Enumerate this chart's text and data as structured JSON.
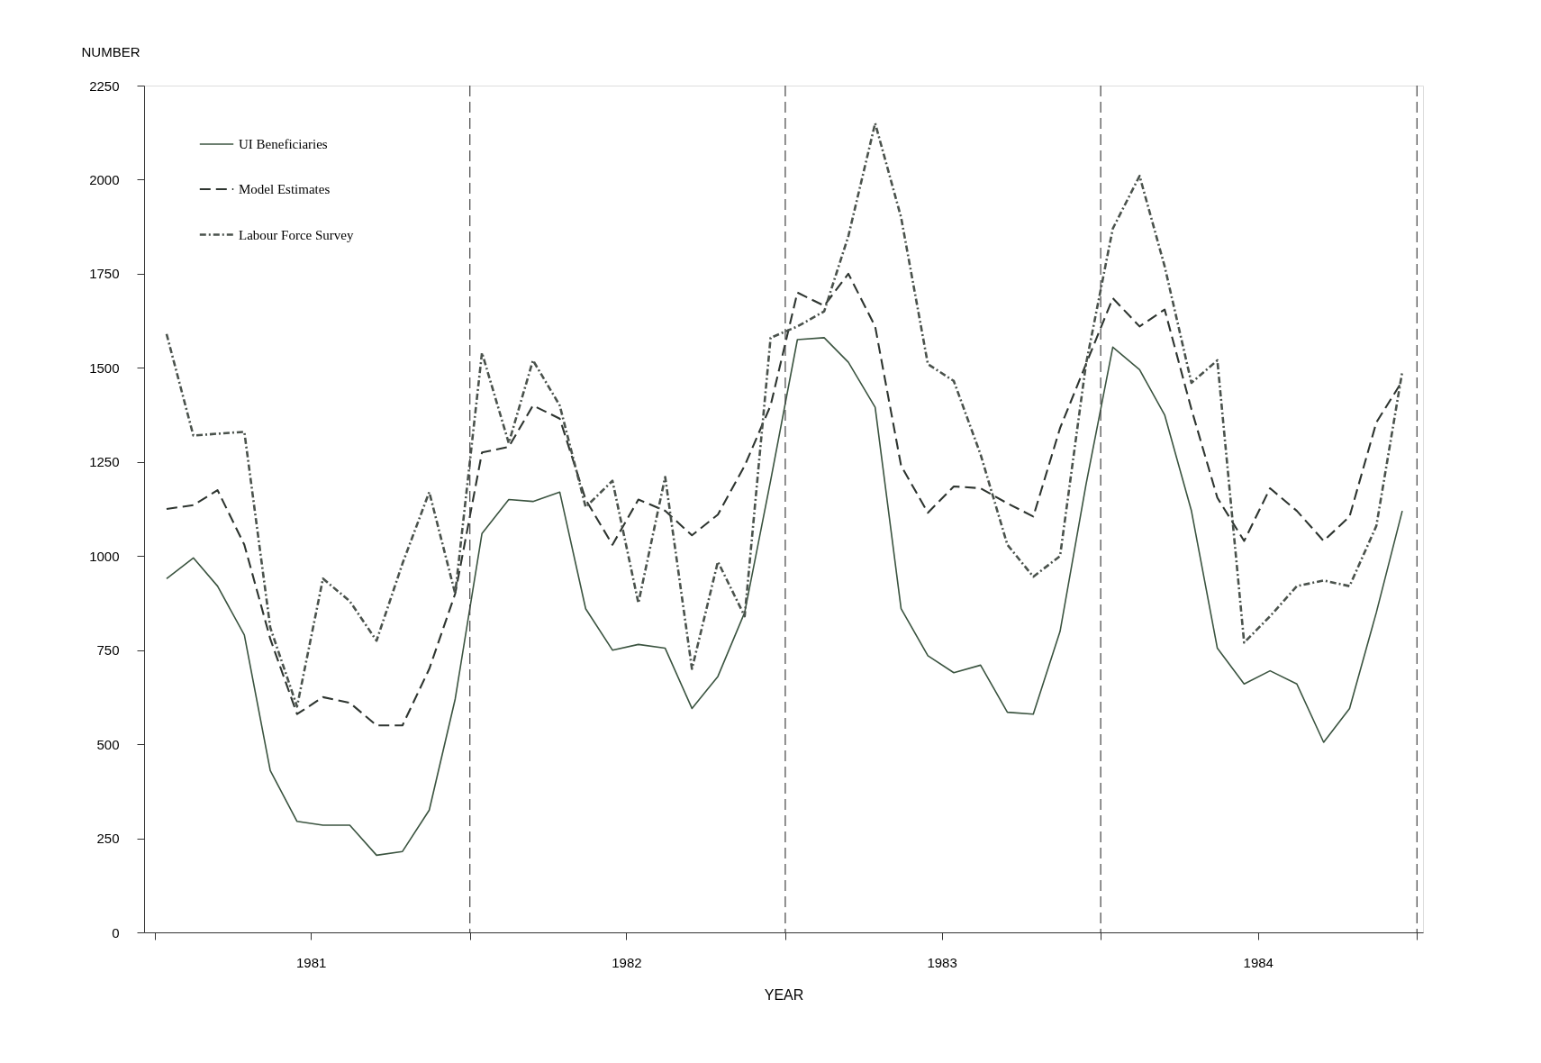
{
  "chart_data": {
    "type": "line",
    "xlabel": "YEAR",
    "ylabel": "NUMBER",
    "x": [
      "1981-01-15",
      "1981-02-15",
      "1981-03-15",
      "1981-04-15",
      "1981-05-15",
      "1981-06-15",
      "1981-07-15",
      "1981-08-15",
      "1981-09-15",
      "1981-10-15",
      "1981-11-15",
      "1981-12-15",
      "1982-01-15",
      "1982-02-15",
      "1982-03-15",
      "1982-04-15",
      "1982-05-15",
      "1982-06-15",
      "1982-07-15",
      "1982-08-15",
      "1982-09-15",
      "1982-10-15",
      "1982-11-15",
      "1982-12-15",
      "1983-01-15",
      "1983-02-15",
      "1983-03-15",
      "1983-04-15",
      "1983-05-15",
      "1983-06-15",
      "1983-07-15",
      "1983-08-15",
      "1983-09-15",
      "1983-10-15",
      "1983-11-15",
      "1983-12-15",
      "1984-01-15",
      "1984-02-15",
      "1984-03-15",
      "1984-04-15",
      "1984-05-15",
      "1984-06-15",
      "1984-07-15",
      "1984-08-15",
      "1984-09-15",
      "1984-10-15",
      "1984-11-15",
      "1984-12-15"
    ],
    "series": [
      {
        "name": "UI Beneficiaries",
        "color": "#3b5440",
        "line_style": "solid",
        "values": [
          940,
          995,
          920,
          790,
          430,
          295,
          285,
          285,
          205,
          215,
          325,
          620,
          1060,
          1150,
          1145,
          1170,
          860,
          750,
          765,
          755,
          595,
          680,
          850,
          1200,
          1575,
          1580,
          1515,
          1395,
          860,
          735,
          690,
          710,
          585,
          580,
          800,
          1190,
          1555,
          1495,
          1375,
          1120,
          755,
          660,
          695,
          660,
          505,
          595,
          850,
          1120
        ]
      },
      {
        "name": "Model Estimates",
        "color": "#2e3530",
        "line_style": "dashed",
        "values": [
          1125,
          1135,
          1175,
          1030,
          780,
          580,
          625,
          610,
          550,
          550,
          700,
          900,
          1275,
          1290,
          1400,
          1365,
          1150,
          1030,
          1150,
          1120,
          1055,
          1110,
          1240,
          1400,
          1700,
          1665,
          1750,
          1610,
          1240,
          1115,
          1185,
          1180,
          1140,
          1105,
          1340,
          1510,
          1685,
          1610,
          1655,
          1390,
          1155,
          1040,
          1180,
          1120,
          1040,
          1105,
          1355,
          1465
        ]
      },
      {
        "name": "Labour Force Survey",
        "color": "#4a524c",
        "line_style": "dotted",
        "values": [
          1590,
          1320,
          1325,
          1330,
          810,
          600,
          940,
          880,
          775,
          980,
          1170,
          900,
          1540,
          1300,
          1520,
          1400,
          1130,
          1200,
          875,
          1210,
          700,
          985,
          840,
          1580,
          1610,
          1650,
          1850,
          2150,
          1900,
          1510,
          1465,
          1270,
          1030,
          945,
          1000,
          1510,
          1870,
          2010,
          1770,
          1460,
          1520,
          770,
          840,
          920,
          935,
          920,
          1080,
          1490
        ]
      }
    ],
    "xlim": [
      "1980-12-20",
      "1985-01-08"
    ],
    "xticks": [
      {
        "value": "1981-01-01",
        "label": null
      },
      {
        "value": "1981-07-01",
        "label": "1981"
      },
      {
        "value": "1982-01-01",
        "label": null
      },
      {
        "value": "1982-07-01",
        "label": "1982"
      },
      {
        "value": "1983-01-01",
        "label": null
      },
      {
        "value": "1983-07-01",
        "label": "1983"
      },
      {
        "value": "1984-01-01",
        "label": null
      },
      {
        "value": "1984-07-01",
        "label": "1984"
      },
      {
        "value": "1985-01-01",
        "label": null
      }
    ],
    "ylim": [
      0,
      2250
    ],
    "yticks": [
      0,
      250,
      500,
      750,
      1000,
      1250,
      1500,
      1750,
      2000,
      2250
    ],
    "ref_lines": [
      {
        "axis": "x",
        "value": "1982-01-01",
        "line_style": "dashed"
      },
      {
        "axis": "x",
        "value": "1983-01-01",
        "line_style": "dashed"
      },
      {
        "axis": "x",
        "value": "1984-01-01",
        "line_style": "dashed"
      },
      {
        "axis": "x",
        "value": "1985-01-01",
        "line_style": "dashed"
      }
    ],
    "grid": false,
    "legend": "top left"
  }
}
